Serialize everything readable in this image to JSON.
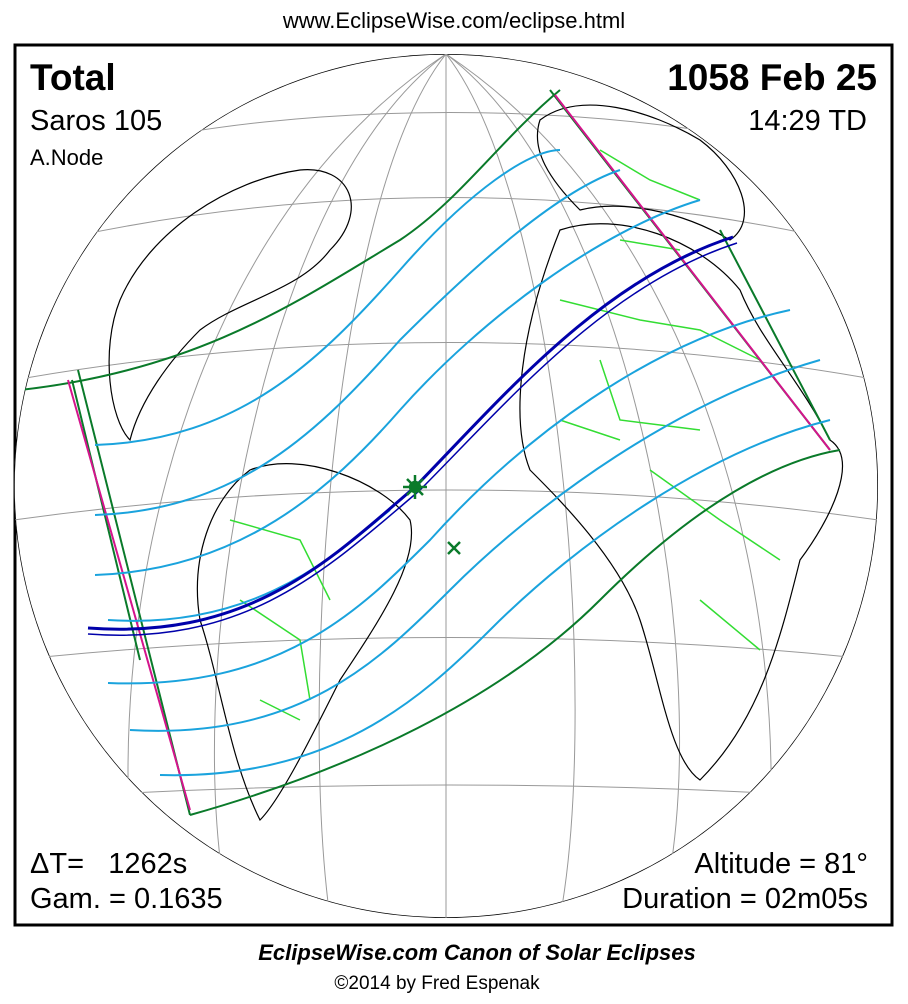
{
  "url": "www.EclipseWise.com/eclipse.html",
  "eclipse": {
    "type": "Total",
    "date": "1058 Feb 25",
    "saros": "Saros 105",
    "time": "14:29 TD",
    "node": "A.Node",
    "delta_t": "ΔT=   1262s",
    "gamma": "Gam. = 0.1635",
    "altitude": "Altitude = 81°",
    "duration": "Duration = 02m05s"
  },
  "footer": {
    "title": "EclipseWise.com Canon of Solar Eclipses",
    "copyright": "©2014 by Fred Espenak"
  }
}
